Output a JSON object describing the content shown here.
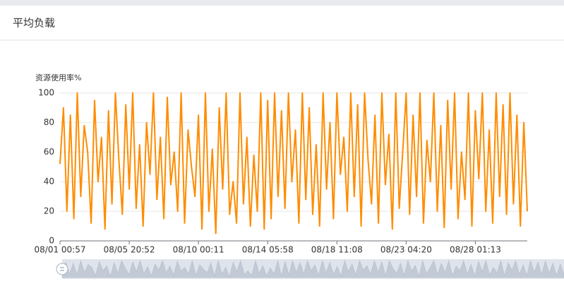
{
  "header": {
    "title": "平均负载"
  },
  "chart_data": {
    "type": "line",
    "y_label": "资源使用率%",
    "color": "#ff8c00",
    "grid": true,
    "ylim": [
      0,
      100
    ],
    "yticks": [
      0,
      20,
      40,
      60,
      80,
      100
    ],
    "categories": [
      "08/01 00:57",
      null,
      null,
      null,
      null,
      null,
      null,
      null,
      null,
      null,
      null,
      null,
      null,
      null,
      null,
      null,
      null,
      null,
      null,
      null,
      "08/05 20:52",
      null,
      null,
      null,
      null,
      null,
      null,
      null,
      null,
      null,
      null,
      null,
      null,
      null,
      null,
      null,
      null,
      null,
      null,
      null,
      "08/10 00:11",
      null,
      null,
      null,
      null,
      null,
      null,
      null,
      null,
      null,
      null,
      null,
      null,
      null,
      null,
      null,
      null,
      null,
      null,
      null,
      "08/14 05:58",
      null,
      null,
      null,
      null,
      null,
      null,
      null,
      null,
      null,
      null,
      null,
      null,
      null,
      null,
      null,
      null,
      null,
      null,
      null,
      "08/18 11:08",
      null,
      null,
      null,
      null,
      null,
      null,
      null,
      null,
      null,
      null,
      null,
      null,
      null,
      null,
      null,
      null,
      null,
      null,
      null,
      "08/23 04:20",
      null,
      null,
      null,
      null,
      null,
      null,
      null,
      null,
      null,
      null,
      null,
      null,
      null,
      null,
      null,
      null,
      null,
      null,
      null,
      "08/28 01:13",
      null,
      null,
      null,
      null,
      null,
      null,
      null,
      null,
      null,
      null,
      null,
      null,
      null,
      null,
      null
    ],
    "values": [
      52,
      90,
      20,
      85,
      15,
      100,
      30,
      78,
      60,
      12,
      95,
      40,
      70,
      8,
      88,
      25,
      100,
      55,
      18,
      92,
      35,
      100,
      22,
      65,
      10,
      80,
      45,
      100,
      28,
      70,
      15,
      97,
      38,
      60,
      20,
      100,
      12,
      75,
      50,
      30,
      85,
      8,
      100,
      20,
      62,
      5,
      90,
      35,
      100,
      18,
      40,
      12,
      100,
      25,
      70,
      10,
      58,
      20,
      100,
      8,
      95,
      15,
      100,
      30,
      88,
      22,
      100,
      40,
      75,
      12,
      100,
      28,
      90,
      18,
      65,
      10,
      100,
      35,
      80,
      15,
      100,
      45,
      70,
      20,
      100,
      30,
      92,
      10,
      100,
      55,
      25,
      85,
      12,
      100,
      38,
      72,
      8,
      100,
      22,
      60,
      100,
      18,
      85,
      30,
      100,
      12,
      68,
      40,
      100,
      20,
      78,
      9,
      95,
      35,
      100,
      15,
      60,
      28,
      100,
      10,
      88,
      42,
      100,
      20,
      75,
      12,
      100,
      30,
      92,
      18,
      100,
      25,
      85,
      10,
      80,
      20
    ]
  }
}
